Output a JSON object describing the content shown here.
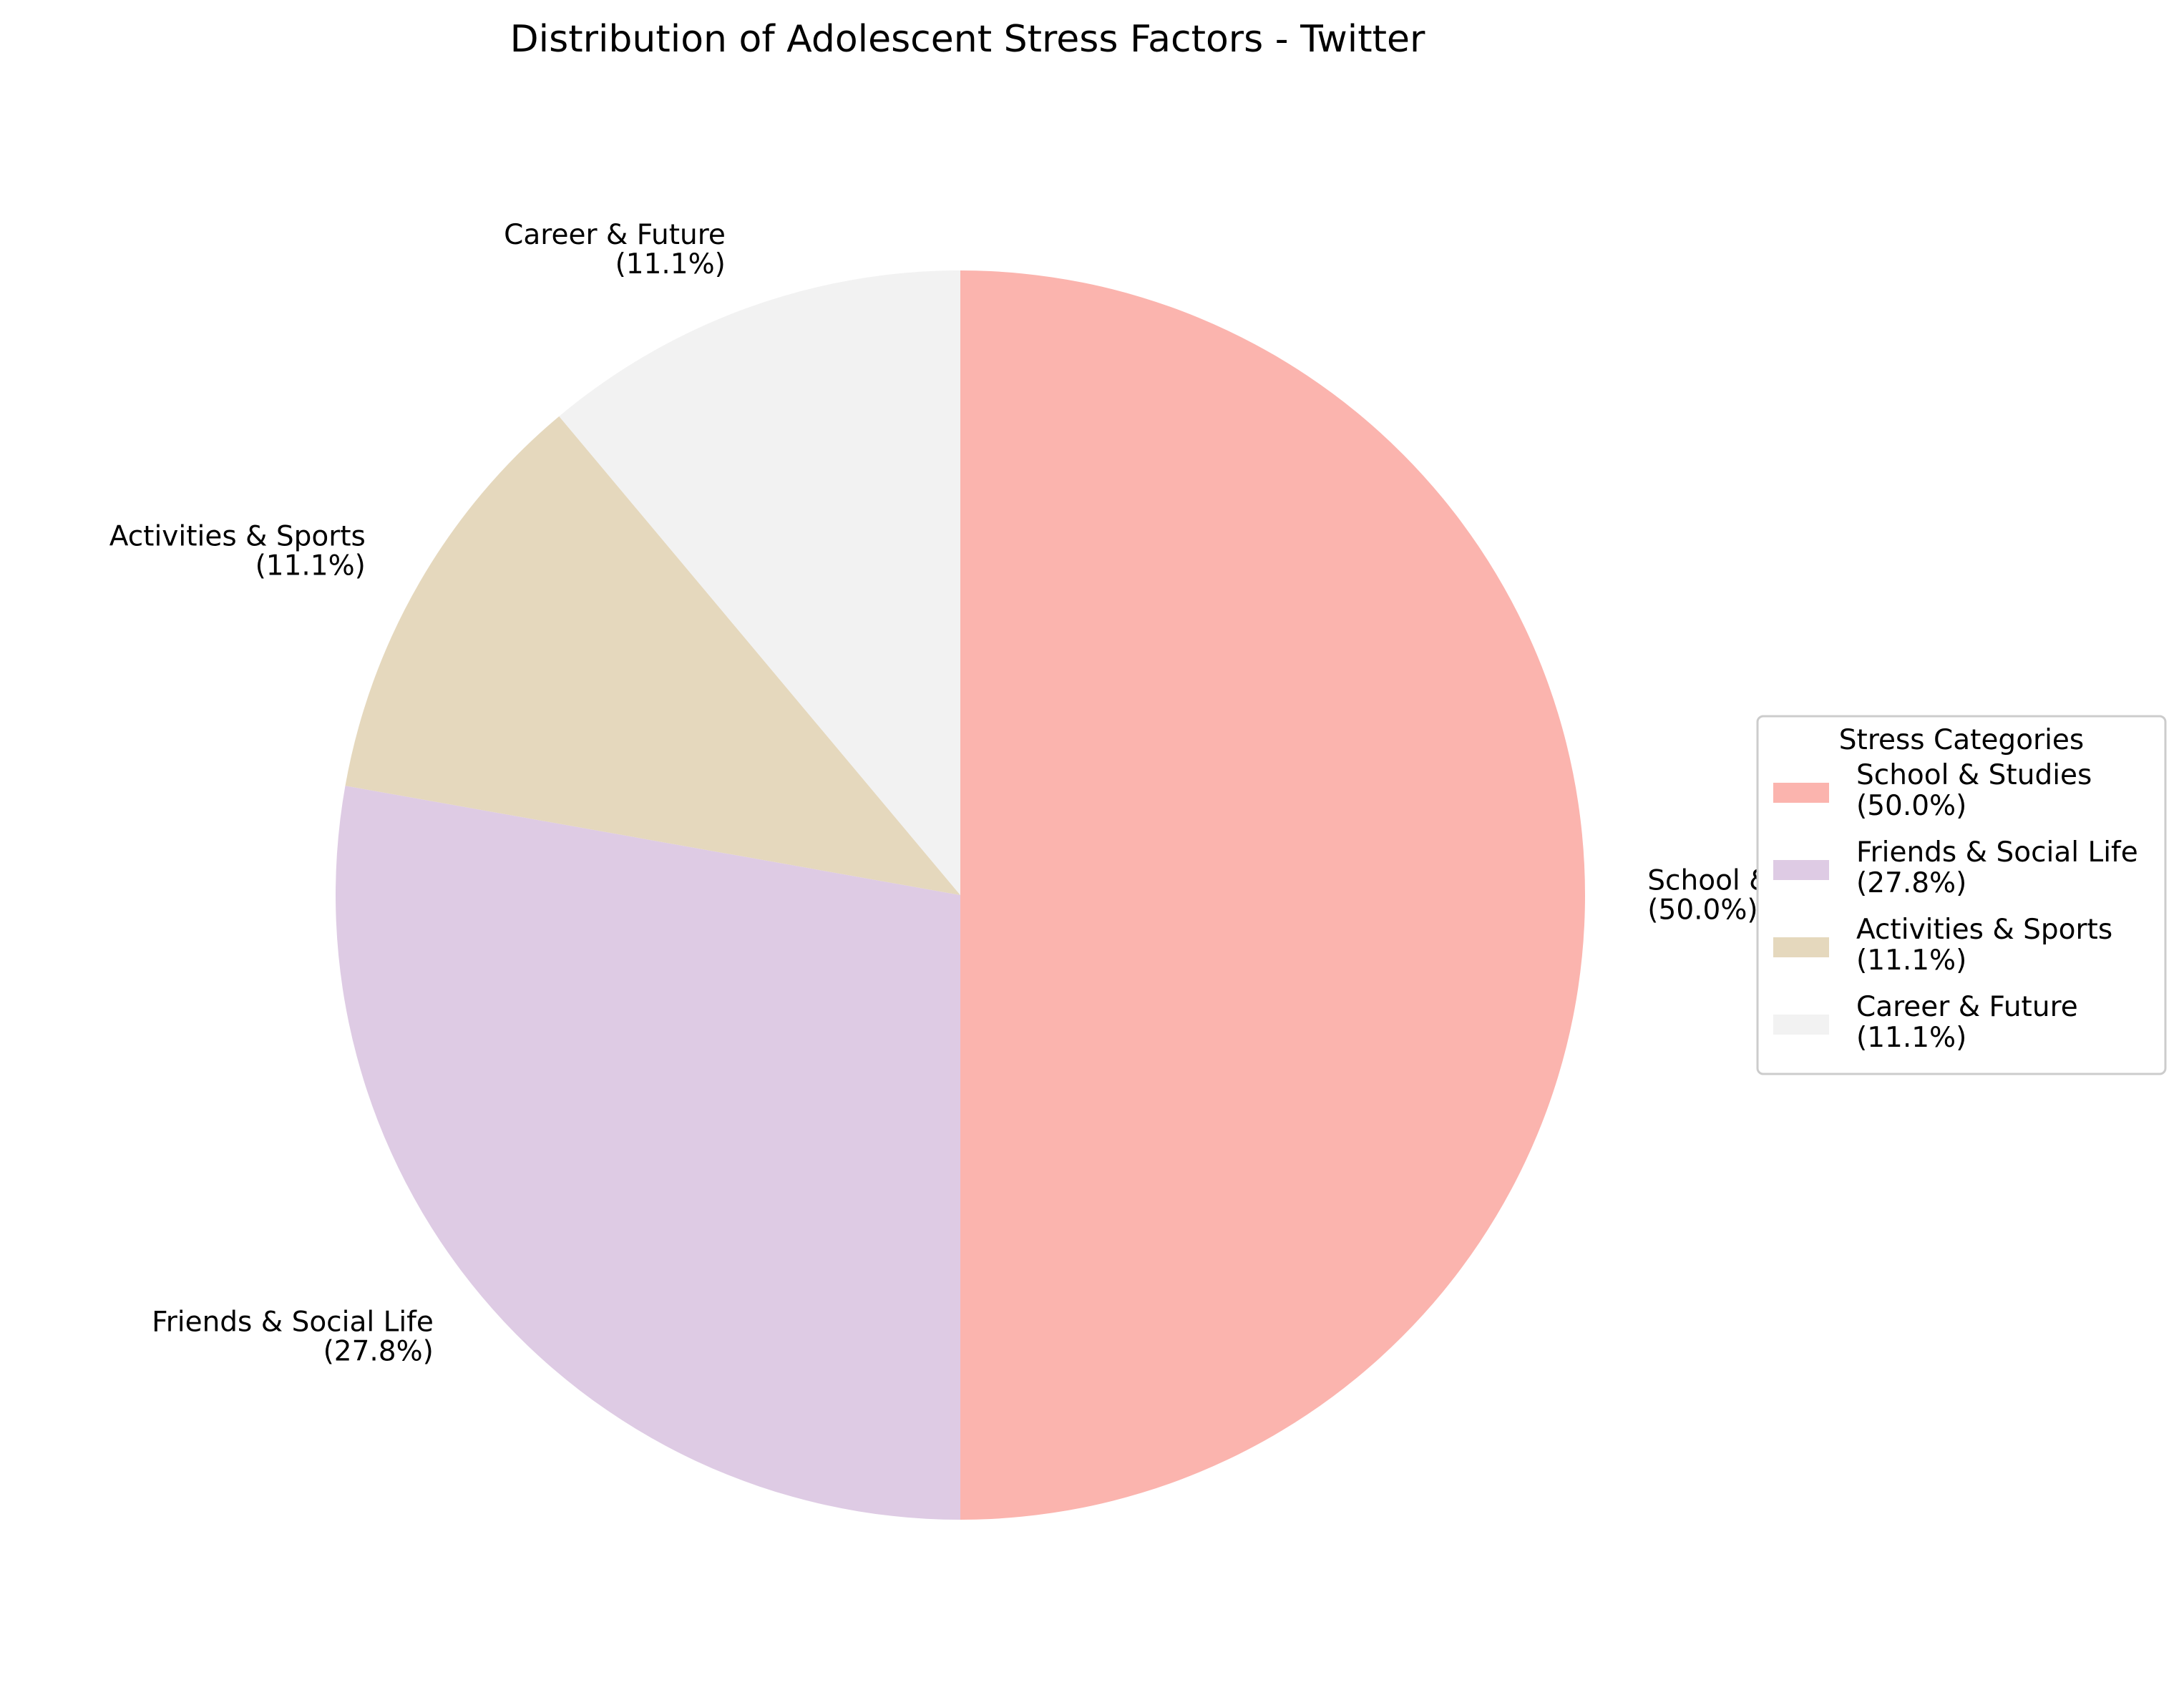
{
  "chart_data": {
    "type": "pie",
    "title": "Distribution of Adolescent Stress Factors - Twitter",
    "start_angle_deg": 90,
    "direction": "clockwise",
    "slices": [
      {
        "label": "School & Studies",
        "value": 50.0,
        "pct_text": "(50.0%)",
        "color": "#fbb4ae"
      },
      {
        "label": "Friends & Social Life",
        "value": 27.8,
        "pct_text": "(27.8%)",
        "color": "#decbe4"
      },
      {
        "label": "Activities & Sports",
        "value": 11.1,
        "pct_text": "(11.1%)",
        "color": "#e5d8bd"
      },
      {
        "label": "Career & Future",
        "value": 11.1,
        "pct_text": "(11.1%)",
        "color": "#f2f2f2"
      }
    ],
    "legend": {
      "title": "Stress Categories",
      "placement": "center-right"
    }
  }
}
